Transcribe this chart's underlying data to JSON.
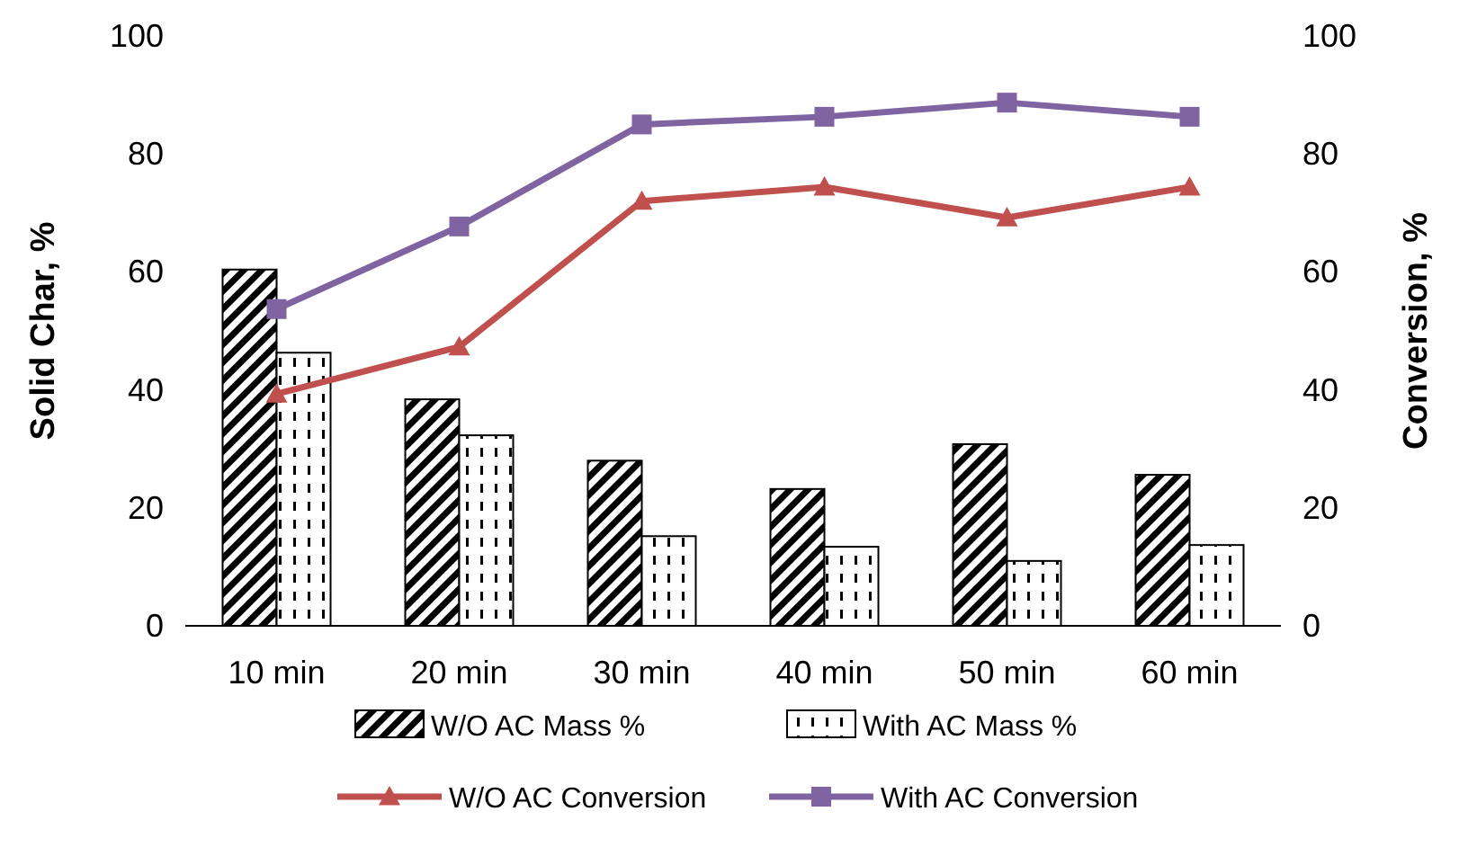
{
  "chart_data": {
    "type": "bar",
    "ylabel": "Solid Char, %",
    "y2label": "Conversion, %",
    "categories": [
      "10 min",
      "20 min",
      "30 min",
      "40 min",
      "50 min",
      "60 min"
    ],
    "ylim": [
      0,
      100
    ],
    "yticks": [
      0,
      20,
      40,
      60,
      80,
      100
    ],
    "y2lim": [
      0,
      100
    ],
    "y2ticks": [
      0,
      20,
      40,
      60,
      80,
      100
    ],
    "legend": "bottom",
    "grid": false,
    "series": [
      {
        "name": "W/O AC Mass %",
        "color": "#000000",
        "values": [
          60.4,
          38.4,
          28,
          23.2,
          30.8,
          25.6
        ]
      },
      {
        "name": "With AC Mass %",
        "color": "#000000",
        "values": [
          46.3,
          32.3,
          15.2,
          13.4,
          11,
          13.7
        ]
      },
      {
        "name": "W/O AC Conversion",
        "type": "line",
        "axis": "y2",
        "marker": "triangle",
        "color": "#c0504d",
        "values": [
          39.3,
          47.3,
          72,
          74.4,
          69.2,
          74.4
        ]
      },
      {
        "name": "With AC Conversion",
        "type": "line",
        "axis": "y2",
        "marker": "square",
        "color": "#8064a2",
        "values": [
          53.7,
          67.7,
          85,
          86.3,
          88.7,
          86.3
        ]
      }
    ]
  }
}
